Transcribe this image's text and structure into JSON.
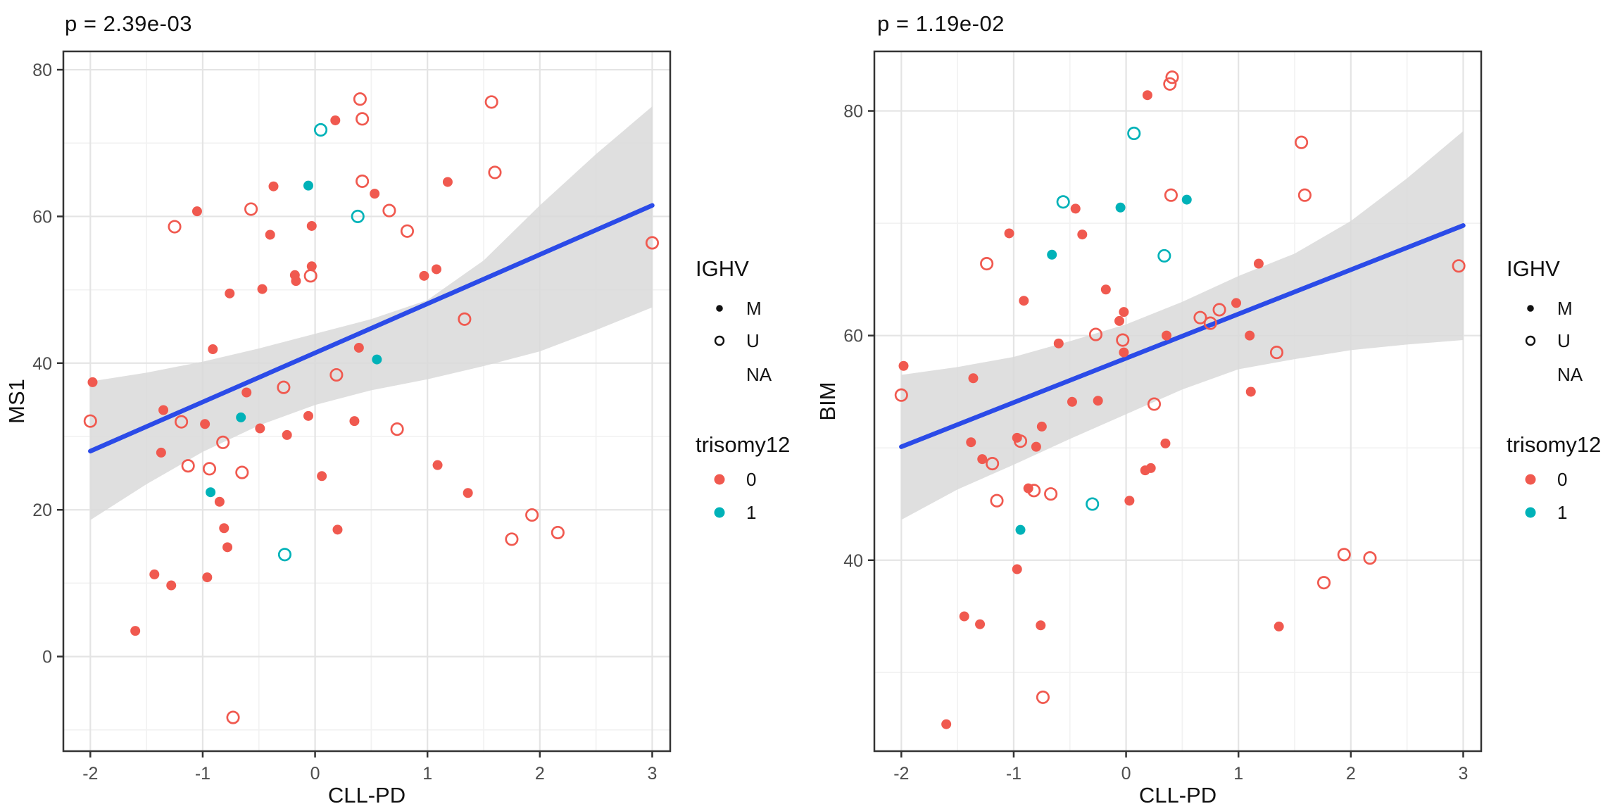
{
  "palette": {
    "trisomy0": "#F0594F",
    "trisomy1": "#00B2B8",
    "smooth_line": "#2B4BE8",
    "ribbon": "#D9D9D9",
    "grid_major": "#E4E4E4",
    "grid_minor": "#F2F2F2",
    "panel_border": "#333333",
    "tick_text": "#4D4D4D",
    "title_text": "#111111"
  },
  "legend": {
    "ighv_title": "IGHV",
    "ighv_items": [
      {
        "label": "M",
        "marker": "filled"
      },
      {
        "label": "U",
        "marker": "open"
      },
      {
        "label": "NA",
        "marker": "none"
      }
    ],
    "trisomy_title": "trisomy12",
    "trisomy_items": [
      {
        "label": "0",
        "color_key": "trisomy0"
      },
      {
        "label": "1",
        "color_key": "trisomy1"
      }
    ]
  },
  "chart_data": [
    {
      "type": "scatter",
      "title": "p = 2.39e-03",
      "xlabel": "CLL-PD",
      "ylabel": "MS1",
      "x_range": [
        -2.24,
        3.16
      ],
      "y_range": [
        -12.9,
        82.5
      ],
      "x_ticks": [
        -2,
        -1,
        0,
        1,
        2,
        3
      ],
      "y_ticks": [
        0,
        20,
        40,
        60,
        80
      ],
      "x_minor": [
        -1.5,
        -0.5,
        0.5,
        1.5,
        2.5
      ],
      "y_minor": [
        -10,
        10,
        30,
        50,
        70
      ],
      "grid": true,
      "legend_position": "right",
      "regression": {
        "x": [
          -2,
          3
        ],
        "y": [
          28.0,
          61.5
        ]
      },
      "ribbon": {
        "x": [
          -2,
          -1.5,
          -1,
          -0.5,
          0,
          0.5,
          1,
          1.5,
          2,
          2.5,
          3
        ],
        "upper": [
          37.5,
          38.7,
          40.2,
          42.0,
          44.0,
          46.0,
          48.6,
          54.0,
          61.5,
          68.5,
          75.0
        ],
        "lower": [
          18.6,
          23.5,
          27.9,
          31.5,
          34.3,
          36.3,
          37.8,
          39.6,
          41.6,
          44.5,
          47.6
        ]
      },
      "points": [
        [
          0.4,
          76.0,
          "U",
          0
        ],
        [
          0.42,
          73.3,
          "U",
          0
        ],
        [
          0.18,
          73.1,
          "M",
          0
        ],
        [
          0.05,
          71.8,
          "U",
          1
        ],
        [
          1.57,
          75.6,
          "U",
          0
        ],
        [
          1.6,
          66.0,
          "U",
          0
        ],
        [
          1.18,
          64.7,
          "M",
          0
        ],
        [
          0.42,
          64.8,
          "U",
          0
        ],
        [
          0.53,
          63.1,
          "M",
          0
        ],
        [
          0.66,
          60.8,
          "U",
          0
        ],
        [
          0.38,
          60.0,
          "U",
          1
        ],
        [
          0.82,
          58.0,
          "U",
          0
        ],
        [
          3.0,
          56.4,
          "U",
          0
        ],
        [
          1.08,
          52.8,
          "M",
          0
        ],
        [
          0.97,
          51.9,
          "M",
          0
        ],
        [
          1.33,
          46.0,
          "U",
          0
        ],
        [
          -0.06,
          64.2,
          "M",
          1
        ],
        [
          -0.37,
          64.1,
          "M",
          0
        ],
        [
          -0.57,
          61.0,
          "U",
          0
        ],
        [
          -1.05,
          60.7,
          "M",
          0
        ],
        [
          -1.25,
          58.6,
          "U",
          0
        ],
        [
          -0.4,
          57.5,
          "M",
          0
        ],
        [
          -0.03,
          58.7,
          "M",
          0
        ],
        [
          -0.03,
          53.2,
          "M",
          0
        ],
        [
          -0.18,
          52.0,
          "M",
          0
        ],
        [
          -0.17,
          51.2,
          "M",
          0
        ],
        [
          -0.04,
          51.9,
          "U",
          0
        ],
        [
          -0.47,
          50.1,
          "M",
          0
        ],
        [
          -0.76,
          49.5,
          "M",
          0
        ],
        [
          -0.91,
          41.9,
          "M",
          0
        ],
        [
          -1.98,
          37.4,
          "M",
          0
        ],
        [
          -2.0,
          32.1,
          "U",
          0
        ],
        [
          -1.35,
          33.6,
          "M",
          0
        ],
        [
          -1.19,
          32.0,
          "U",
          0
        ],
        [
          -0.98,
          31.7,
          "M",
          0
        ],
        [
          -0.61,
          36.0,
          "M",
          0
        ],
        [
          -0.28,
          36.7,
          "U",
          0
        ],
        [
          -0.66,
          32.6,
          "M",
          1
        ],
        [
          -0.49,
          31.1,
          "M",
          0
        ],
        [
          -0.25,
          30.2,
          "M",
          0
        ],
        [
          -0.06,
          32.8,
          "M",
          0
        ],
        [
          0.35,
          32.1,
          "M",
          0
        ],
        [
          0.19,
          38.4,
          "U",
          0
        ],
        [
          -1.37,
          27.8,
          "M",
          0
        ],
        [
          -0.82,
          29.2,
          "U",
          0
        ],
        [
          -1.13,
          26.0,
          "U",
          0
        ],
        [
          -0.94,
          25.6,
          "U",
          0
        ],
        [
          -0.65,
          25.1,
          "U",
          0
        ],
        [
          -0.93,
          22.4,
          "M",
          1
        ],
        [
          -0.85,
          21.1,
          "M",
          0
        ],
        [
          -0.81,
          17.5,
          "M",
          0
        ],
        [
          -0.78,
          14.9,
          "M",
          0
        ],
        [
          -0.27,
          13.9,
          "U",
          1
        ],
        [
          -1.43,
          11.2,
          "M",
          0
        ],
        [
          -1.28,
          9.7,
          "M",
          0
        ],
        [
          -0.96,
          10.8,
          "M",
          0
        ],
        [
          0.06,
          24.6,
          "M",
          0
        ],
        [
          0.2,
          17.3,
          "M",
          0
        ],
        [
          0.39,
          42.1,
          "M",
          0
        ],
        [
          0.55,
          40.5,
          "M",
          1
        ],
        [
          0.73,
          31.0,
          "U",
          0
        ],
        [
          1.09,
          26.1,
          "M",
          0
        ],
        [
          1.36,
          22.3,
          "M",
          0
        ],
        [
          1.93,
          19.3,
          "U",
          0
        ],
        [
          1.75,
          16.0,
          "U",
          0
        ],
        [
          2.16,
          16.9,
          "U",
          0
        ],
        [
          -1.6,
          3.5,
          "M",
          0
        ],
        [
          -0.73,
          -8.3,
          "U",
          0
        ]
      ]
    },
    {
      "type": "scatter",
      "title": "p = 1.19e-02",
      "xlabel": "CLL-PD",
      "ylabel": "BIM",
      "x_range": [
        -2.24,
        3.16
      ],
      "y_range": [
        23.0,
        85.3
      ],
      "x_ticks": [
        -2,
        -1,
        0,
        1,
        2,
        3
      ],
      "y_ticks": [
        40,
        60,
        80
      ],
      "x_minor": [
        -1.5,
        -0.5,
        0.5,
        1.5,
        2.5
      ],
      "y_minor": [
        30,
        50,
        70
      ],
      "grid": true,
      "legend_position": "right",
      "regression": {
        "x": [
          -2,
          3
        ],
        "y": [
          50.1,
          69.8
        ]
      },
      "ribbon": {
        "x": [
          -2,
          -1.5,
          -1,
          -0.5,
          0,
          0.5,
          1,
          1.5,
          2,
          2.5,
          3
        ],
        "upper": [
          56.5,
          57.2,
          58.1,
          59.5,
          61.0,
          63.0,
          65.3,
          67.3,
          70.2,
          74.0,
          78.2
        ],
        "lower": [
          43.6,
          46.3,
          48.5,
          50.8,
          53.0,
          55.2,
          57.0,
          57.9,
          58.7,
          59.2,
          59.6
        ]
      },
      "points": [
        [
          0.41,
          83.0,
          "U",
          0
        ],
        [
          0.39,
          82.4,
          "U",
          0
        ],
        [
          0.19,
          81.4,
          "M",
          0
        ],
        [
          0.07,
          78.0,
          "U",
          1
        ],
        [
          1.56,
          77.2,
          "U",
          0
        ],
        [
          1.59,
          72.5,
          "U",
          0
        ],
        [
          -0.56,
          71.9,
          "U",
          1
        ],
        [
          -0.45,
          71.3,
          "M",
          0
        ],
        [
          -0.05,
          71.4,
          "M",
          1
        ],
        [
          0.4,
          72.5,
          "U",
          0
        ],
        [
          0.54,
          72.1,
          "M",
          1
        ],
        [
          1.18,
          66.4,
          "M",
          0
        ],
        [
          2.96,
          66.2,
          "U",
          0
        ],
        [
          -1.98,
          57.3,
          "M",
          0
        ],
        [
          -2.0,
          54.7,
          "U",
          0
        ],
        [
          -1.24,
          66.4,
          "U",
          0
        ],
        [
          -0.66,
          67.2,
          "M",
          1
        ],
        [
          0.34,
          67.1,
          "U",
          1
        ],
        [
          -1.04,
          69.1,
          "M",
          0
        ],
        [
          -0.39,
          69.0,
          "M",
          0
        ],
        [
          -0.91,
          63.1,
          "M",
          0
        ],
        [
          -0.18,
          64.1,
          "M",
          0
        ],
        [
          -0.02,
          62.1,
          "M",
          0
        ],
        [
          -0.06,
          61.3,
          "M",
          0
        ],
        [
          -0.6,
          59.3,
          "M",
          0
        ],
        [
          -0.27,
          60.1,
          "U",
          0
        ],
        [
          -0.03,
          59.6,
          "U",
          0
        ],
        [
          -0.02,
          58.5,
          "M",
          0
        ],
        [
          0.36,
          60.0,
          "M",
          0
        ],
        [
          0.66,
          61.6,
          "U",
          0
        ],
        [
          -1.36,
          56.2,
          "M",
          0
        ],
        [
          -0.48,
          54.1,
          "M",
          0
        ],
        [
          -0.25,
          54.2,
          "M",
          0
        ],
        [
          0.25,
          53.9,
          "U",
          0
        ],
        [
          -0.75,
          51.9,
          "M",
          0
        ],
        [
          -0.97,
          50.9,
          "M",
          0
        ],
        [
          -0.94,
          50.6,
          "U",
          0
        ],
        [
          -1.38,
          50.5,
          "M",
          0
        ],
        [
          -0.8,
          50.1,
          "M",
          0
        ],
        [
          -1.28,
          49.0,
          "M",
          0
        ],
        [
          -1.19,
          48.6,
          "U",
          0
        ],
        [
          0.22,
          48.2,
          "M",
          0
        ],
        [
          0.35,
          50.4,
          "M",
          0
        ],
        [
          -1.15,
          45.3,
          "U",
          0
        ],
        [
          -0.87,
          46.4,
          "M",
          0
        ],
        [
          -0.82,
          46.2,
          "U",
          0
        ],
        [
          -0.67,
          45.9,
          "U",
          0
        ],
        [
          -0.3,
          45.0,
          "U",
          1
        ],
        [
          0.03,
          45.3,
          "M",
          0
        ],
        [
          0.17,
          48.0,
          "M",
          0
        ],
        [
          -0.94,
          42.7,
          "M",
          1
        ],
        [
          -0.97,
          39.2,
          "M",
          0
        ],
        [
          -1.44,
          35.0,
          "M",
          0
        ],
        [
          -1.3,
          34.3,
          "M",
          0
        ],
        [
          0.98,
          62.9,
          "M",
          0
        ],
        [
          0.83,
          62.3,
          "U",
          0
        ],
        [
          0.75,
          61.1,
          "U",
          0
        ],
        [
          1.1,
          60.0,
          "M",
          0
        ],
        [
          1.34,
          58.5,
          "U",
          0
        ],
        [
          1.11,
          55.0,
          "M",
          0
        ],
        [
          1.94,
          40.5,
          "U",
          0
        ],
        [
          2.17,
          40.2,
          "U",
          0
        ],
        [
          1.76,
          38.0,
          "U",
          0
        ],
        [
          -0.76,
          34.2,
          "M",
          0
        ],
        [
          -0.74,
          27.8,
          "U",
          0
        ],
        [
          -1.6,
          25.4,
          "M",
          0
        ],
        [
          1.36,
          34.1,
          "M",
          0
        ]
      ]
    }
  ]
}
